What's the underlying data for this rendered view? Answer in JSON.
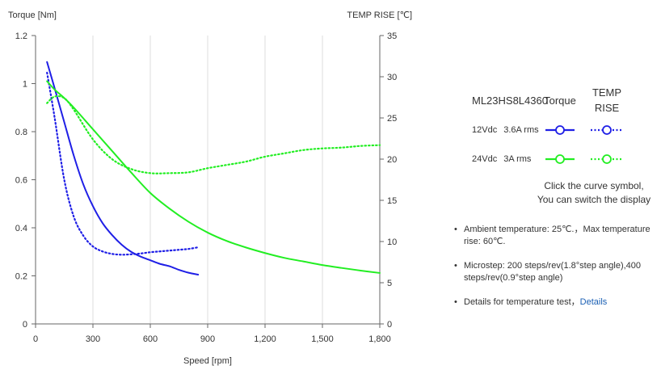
{
  "chart_data": {
    "type": "line",
    "xlabel": "Speed [rpm]",
    "ylabel_left": "Torque  [Nm]",
    "ylabel_right": "TEMP RISE [℃]",
    "xlim": [
      0,
      1800
    ],
    "ylim_left": [
      0,
      1.2
    ],
    "ylim_right": [
      0,
      35
    ],
    "x_ticks": [
      0,
      300,
      600,
      900,
      1200,
      1500,
      1800
    ],
    "x_tick_labels": [
      "0",
      "300",
      "600",
      "900",
      "1,200",
      "1,500",
      "1,800"
    ],
    "y_left_ticks": [
      0,
      0.2,
      0.4,
      0.6,
      0.8,
      1,
      1.2
    ],
    "y_left_tick_labels": [
      "0",
      "0.2",
      "0.4",
      "0.6",
      "0.8",
      "1",
      "1.2"
    ],
    "y_right_ticks": [
      0,
      5,
      10,
      15,
      20,
      25,
      30,
      35
    ],
    "y_right_tick_labels": [
      "0",
      "5",
      "10",
      "15",
      "20",
      "25",
      "30",
      "35"
    ],
    "grid": "vertical",
    "series": [
      {
        "name": "12Vdc 3.6A rms Torque",
        "axis": "left",
        "color": "#1f1fe6",
        "style": "solid",
        "x": [
          60,
          100,
          150,
          200,
          250,
          300,
          350,
          400,
          450,
          500,
          550,
          600,
          650,
          700,
          750,
          800,
          850
        ],
        "y": [
          1.09,
          0.98,
          0.84,
          0.7,
          0.58,
          0.49,
          0.42,
          0.37,
          0.33,
          0.3,
          0.28,
          0.265,
          0.25,
          0.24,
          0.225,
          0.213,
          0.205
        ]
      },
      {
        "name": "12Vdc 3.6A rms TEMP RISE",
        "axis": "right",
        "color": "#1f1fe6",
        "style": "dotted",
        "x": [
          60,
          100,
          150,
          200,
          250,
          300,
          350,
          400,
          450,
          500,
          550,
          600,
          650,
          700,
          750,
          800,
          850
        ],
        "y": [
          30.5,
          25,
          17.5,
          13,
          10.7,
          9.4,
          8.8,
          8.5,
          8.4,
          8.45,
          8.55,
          8.7,
          8.8,
          8.9,
          9,
          9.1,
          9.3
        ]
      },
      {
        "name": "24Vdc 3A rms Torque",
        "axis": "left",
        "color": "#22ee22",
        "style": "solid",
        "x": [
          60,
          100,
          150,
          200,
          300,
          400,
          500,
          600,
          700,
          800,
          900,
          1000,
          1100,
          1200,
          1300,
          1400,
          1500,
          1600,
          1700,
          1800
        ],
        "y": [
          1.01,
          0.975,
          0.94,
          0.9,
          0.81,
          0.72,
          0.63,
          0.545,
          0.48,
          0.425,
          0.38,
          0.345,
          0.318,
          0.295,
          0.275,
          0.26,
          0.245,
          0.233,
          0.222,
          0.212
        ]
      },
      {
        "name": "24Vdc 3A rms TEMP RISE",
        "axis": "right",
        "color": "#22ee22",
        "style": "dotted",
        "x": [
          60,
          100,
          150,
          200,
          300,
          400,
          500,
          600,
          700,
          800,
          900,
          1000,
          1100,
          1200,
          1300,
          1400,
          1500,
          1600,
          1700,
          1800
        ],
        "y": [
          26.8,
          27.6,
          27.4,
          26,
          22.4,
          20,
          18.8,
          18.3,
          18.3,
          18.4,
          18.9,
          19.3,
          19.7,
          20.3,
          20.7,
          21.1,
          21.3,
          21.4,
          21.6,
          21.7
        ]
      }
    ]
  },
  "legend": {
    "model": "ML23HS8L4360",
    "col_torque": "Torque",
    "col_temp_line1": "TEMP",
    "col_temp_line2": "RISE",
    "rows": [
      {
        "voltage": "12Vdc",
        "current": "3.6A rms",
        "color": "#1f1fe6"
      },
      {
        "voltage": "24Vdc",
        "current": "3A rms",
        "color": "#22ee22"
      }
    ]
  },
  "click_note": {
    "line1": "Click the curve symbol,",
    "line2": "You can switch the display"
  },
  "notes": {
    "bullet": "•",
    "ambient": "Ambient temperature: 25℃.，Max temperature rise: 60℃.",
    "microstep": "Microstep: 200 steps/rev(1.8°step angle),400 steps/rev(0.9°step angle)",
    "details_text": "Details for temperature test，",
    "details_link": "Details"
  }
}
